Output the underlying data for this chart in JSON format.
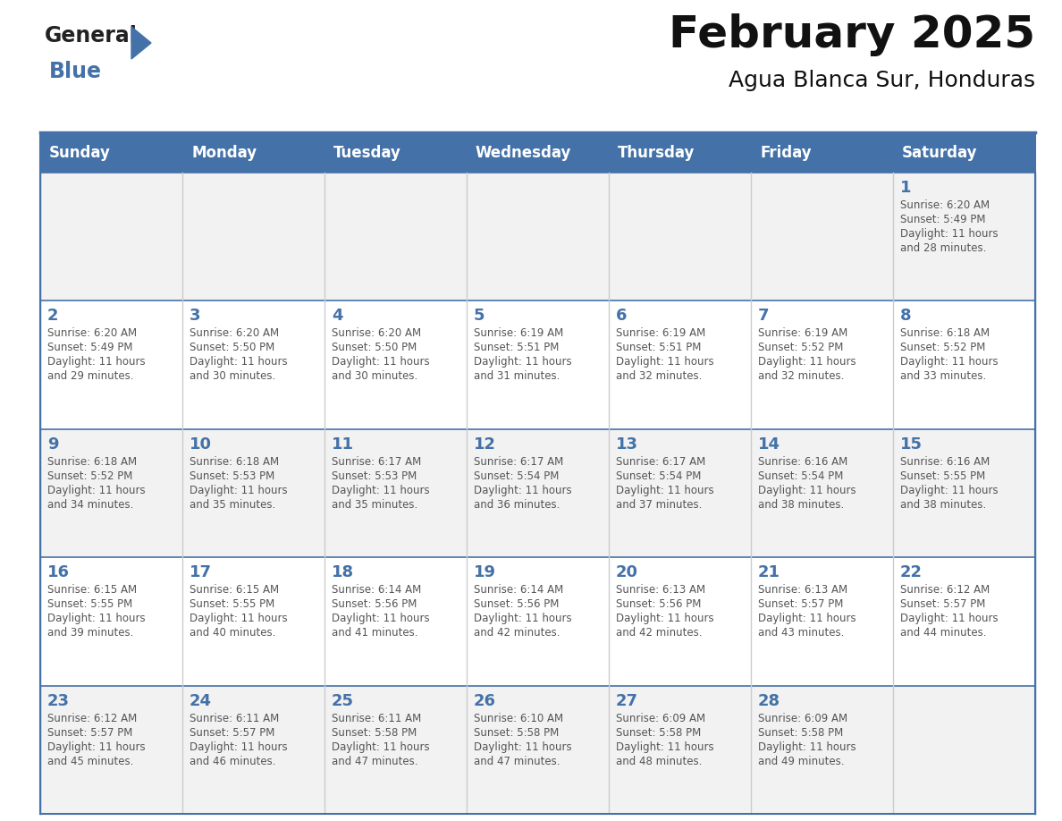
{
  "title": "February 2025",
  "subtitle": "Agua Blanca Sur, Honduras",
  "days_of_week": [
    "Sunday",
    "Monday",
    "Tuesday",
    "Wednesday",
    "Thursday",
    "Friday",
    "Saturday"
  ],
  "header_bg": "#4472A8",
  "header_text": "#FFFFFF",
  "cell_bg_row0": "#F2F2F2",
  "cell_bg_row1": "#FFFFFF",
  "cell_bg_row2": "#F2F2F2",
  "cell_bg_row3": "#FFFFFF",
  "cell_bg_row4": "#F2F2F2",
  "border_color": "#4472A8",
  "row_line_color": "#4472A8",
  "col_line_color": "#CCCCCC",
  "day_number_color": "#4472A8",
  "text_color": "#555555",
  "title_color": "#111111",
  "logo_general_color": "#222222",
  "logo_blue_color": "#4472A8",
  "calendar_data": [
    [
      null,
      null,
      null,
      null,
      null,
      null,
      {
        "day": 1,
        "sunrise": "6:20 AM",
        "sunset": "5:49 PM",
        "hours": "11 hours",
        "minutes": "and 28 minutes."
      }
    ],
    [
      {
        "day": 2,
        "sunrise": "6:20 AM",
        "sunset": "5:49 PM",
        "hours": "11 hours",
        "minutes": "and 29 minutes."
      },
      {
        "day": 3,
        "sunrise": "6:20 AM",
        "sunset": "5:50 PM",
        "hours": "11 hours",
        "minutes": "and 30 minutes."
      },
      {
        "day": 4,
        "sunrise": "6:20 AM",
        "sunset": "5:50 PM",
        "hours": "11 hours",
        "minutes": "and 30 minutes."
      },
      {
        "day": 5,
        "sunrise": "6:19 AM",
        "sunset": "5:51 PM",
        "hours": "11 hours",
        "minutes": "and 31 minutes."
      },
      {
        "day": 6,
        "sunrise": "6:19 AM",
        "sunset": "5:51 PM",
        "hours": "11 hours",
        "minutes": "and 32 minutes."
      },
      {
        "day": 7,
        "sunrise": "6:19 AM",
        "sunset": "5:52 PM",
        "hours": "11 hours",
        "minutes": "and 32 minutes."
      },
      {
        "day": 8,
        "sunrise": "6:18 AM",
        "sunset": "5:52 PM",
        "hours": "11 hours",
        "minutes": "and 33 minutes."
      }
    ],
    [
      {
        "day": 9,
        "sunrise": "6:18 AM",
        "sunset": "5:52 PM",
        "hours": "11 hours",
        "minutes": "and 34 minutes."
      },
      {
        "day": 10,
        "sunrise": "6:18 AM",
        "sunset": "5:53 PM",
        "hours": "11 hours",
        "minutes": "and 35 minutes."
      },
      {
        "day": 11,
        "sunrise": "6:17 AM",
        "sunset": "5:53 PM",
        "hours": "11 hours",
        "minutes": "and 35 minutes."
      },
      {
        "day": 12,
        "sunrise": "6:17 AM",
        "sunset": "5:54 PM",
        "hours": "11 hours",
        "minutes": "and 36 minutes."
      },
      {
        "day": 13,
        "sunrise": "6:17 AM",
        "sunset": "5:54 PM",
        "hours": "11 hours",
        "minutes": "and 37 minutes."
      },
      {
        "day": 14,
        "sunrise": "6:16 AM",
        "sunset": "5:54 PM",
        "hours": "11 hours",
        "minutes": "and 38 minutes."
      },
      {
        "day": 15,
        "sunrise": "6:16 AM",
        "sunset": "5:55 PM",
        "hours": "11 hours",
        "minutes": "and 38 minutes."
      }
    ],
    [
      {
        "day": 16,
        "sunrise": "6:15 AM",
        "sunset": "5:55 PM",
        "hours": "11 hours",
        "minutes": "and 39 minutes."
      },
      {
        "day": 17,
        "sunrise": "6:15 AM",
        "sunset": "5:55 PM",
        "hours": "11 hours",
        "minutes": "and 40 minutes."
      },
      {
        "day": 18,
        "sunrise": "6:14 AM",
        "sunset": "5:56 PM",
        "hours": "11 hours",
        "minutes": "and 41 minutes."
      },
      {
        "day": 19,
        "sunrise": "6:14 AM",
        "sunset": "5:56 PM",
        "hours": "11 hours",
        "minutes": "and 42 minutes."
      },
      {
        "day": 20,
        "sunrise": "6:13 AM",
        "sunset": "5:56 PM",
        "hours": "11 hours",
        "minutes": "and 42 minutes."
      },
      {
        "day": 21,
        "sunrise": "6:13 AM",
        "sunset": "5:57 PM",
        "hours": "11 hours",
        "minutes": "and 43 minutes."
      },
      {
        "day": 22,
        "sunrise": "6:12 AM",
        "sunset": "5:57 PM",
        "hours": "11 hours",
        "minutes": "and 44 minutes."
      }
    ],
    [
      {
        "day": 23,
        "sunrise": "6:12 AM",
        "sunset": "5:57 PM",
        "hours": "11 hours",
        "minutes": "and 45 minutes."
      },
      {
        "day": 24,
        "sunrise": "6:11 AM",
        "sunset": "5:57 PM",
        "hours": "11 hours",
        "minutes": "and 46 minutes."
      },
      {
        "day": 25,
        "sunrise": "6:11 AM",
        "sunset": "5:58 PM",
        "hours": "11 hours",
        "minutes": "and 47 minutes."
      },
      {
        "day": 26,
        "sunrise": "6:10 AM",
        "sunset": "5:58 PM",
        "hours": "11 hours",
        "minutes": "and 47 minutes."
      },
      {
        "day": 27,
        "sunrise": "6:09 AM",
        "sunset": "5:58 PM",
        "hours": "11 hours",
        "minutes": "and 48 minutes."
      },
      {
        "day": 28,
        "sunrise": "6:09 AM",
        "sunset": "5:58 PM",
        "hours": "11 hours",
        "minutes": "and 49 minutes."
      },
      null
    ]
  ]
}
